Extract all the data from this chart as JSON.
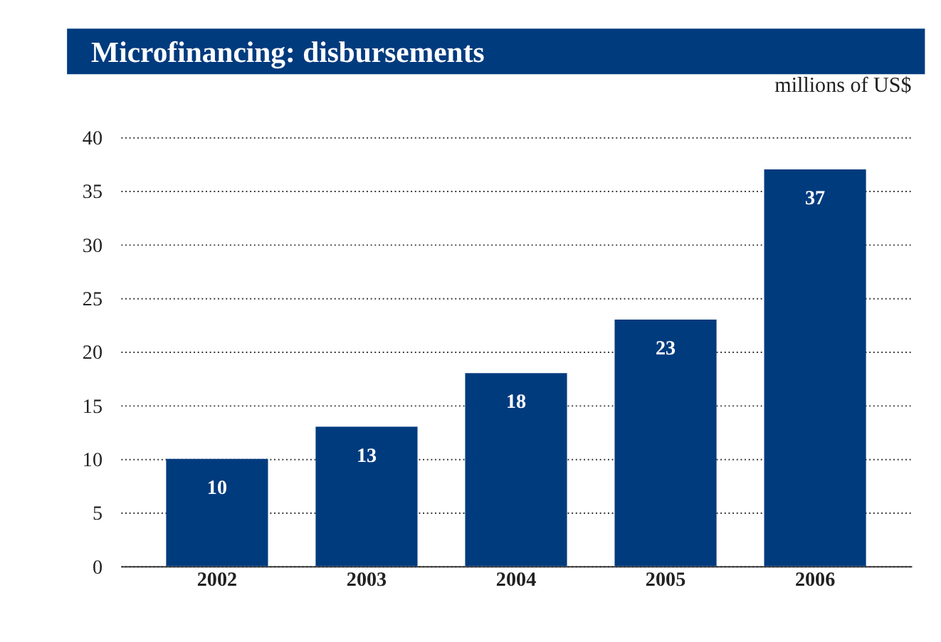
{
  "chart_data": {
    "type": "bar",
    "title": "Microfinancing: disbursements",
    "subtitle": "millions of US$",
    "categories": [
      "2002",
      "2003",
      "2004",
      "2005",
      "2006"
    ],
    "values": [
      10,
      13,
      18,
      23,
      37
    ],
    "color": "#003b7e",
    "ylim": [
      0,
      40
    ],
    "yticks": [
      0,
      5,
      10,
      15,
      20,
      25,
      30,
      35,
      40
    ],
    "grid": "y",
    "data_labels": true
  }
}
